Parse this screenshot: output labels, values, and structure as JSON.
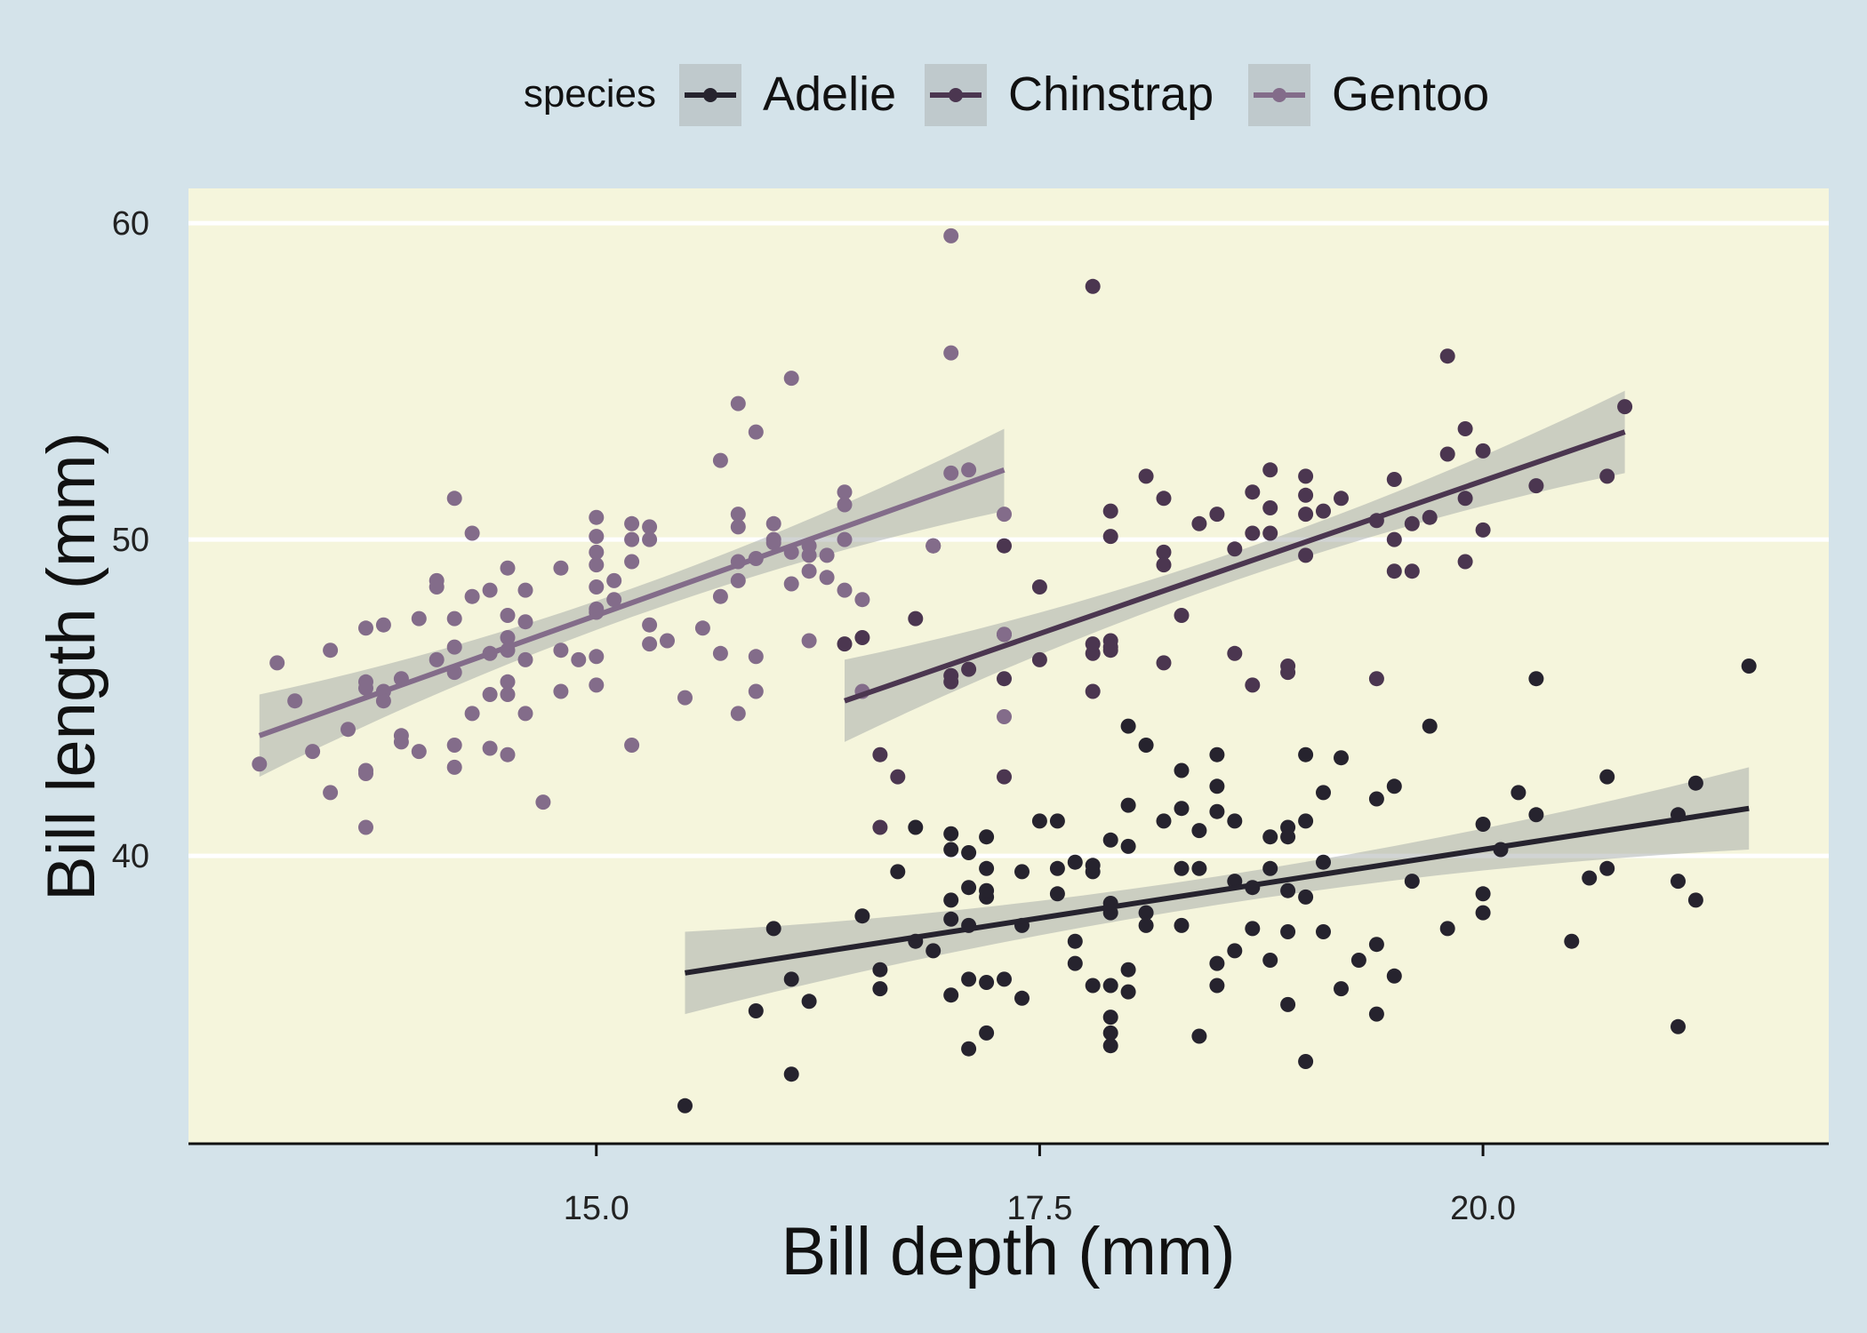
{
  "colors": {
    "page_bg": "#d4e3ea",
    "panel_bg": "#f5f5dc",
    "gridline": "#ffffff",
    "ribbon": "#c6cbc6",
    "legend_key_bg": "#bfc9cc",
    "Adelie": "#26232e",
    "Chinstrap": "#4b3650",
    "Gentoo": "#836c8a"
  },
  "legend": {
    "title": "species",
    "position": "top"
  },
  "chart_data": {
    "type": "scatter",
    "xlabel": "Bill depth (mm)",
    "ylabel": "Bill length (mm)",
    "xlim": [
      12.7,
      21.95
    ],
    "ylim": [
      30.9,
      61.1
    ],
    "xticks": [
      15.0,
      17.5,
      20.0
    ],
    "xtick_labels": [
      "15.0",
      "17.5",
      "20.0"
    ],
    "yticks": [
      40,
      50,
      60
    ],
    "ytick_labels": [
      "40",
      "50",
      "60"
    ],
    "grid": "horizontal major lines only",
    "series": [
      {
        "name": "Adelie",
        "points": [
          [
            15.5,
            32.1
          ],
          [
            16.1,
            33.1
          ],
          [
            17.1,
            33.9
          ],
          [
            17.2,
            34.4
          ],
          [
            17.9,
            34.4
          ],
          [
            18.4,
            34.3
          ],
          [
            21.1,
            34.6
          ],
          [
            17.9,
            34.0
          ],
          [
            19.0,
            33.5
          ],
          [
            15.9,
            35.1
          ],
          [
            16.2,
            35.4
          ],
          [
            17.4,
            35.5
          ],
          [
            17.9,
            34.9
          ],
          [
            18.5,
            35.9
          ],
          [
            19.4,
            35.0
          ],
          [
            16.1,
            36.1
          ],
          [
            18.9,
            35.3
          ],
          [
            19.2,
            35.8
          ],
          [
            16.6,
            35.8
          ],
          [
            17.0,
            35.6
          ],
          [
            17.1,
            36.1
          ],
          [
            17.2,
            36.0
          ],
          [
            17.3,
            36.1
          ],
          [
            17.7,
            36.6
          ],
          [
            17.8,
            35.9
          ],
          [
            17.9,
            35.9
          ],
          [
            18.0,
            35.7
          ],
          [
            18.0,
            36.4
          ],
          [
            16.0,
            37.7
          ],
          [
            16.5,
            38.1
          ],
          [
            16.6,
            36.4
          ],
          [
            16.8,
            37.3
          ],
          [
            16.9,
            37.0
          ],
          [
            17.0,
            38.0
          ],
          [
            17.1,
            37.8
          ],
          [
            17.4,
            37.8
          ],
          [
            17.7,
            37.3
          ],
          [
            18.1,
            37.8
          ],
          [
            18.1,
            38.2
          ],
          [
            18.3,
            37.8
          ],
          [
            18.5,
            36.6
          ],
          [
            18.6,
            37.0
          ],
          [
            18.7,
            37.7
          ],
          [
            18.8,
            36.7
          ],
          [
            18.9,
            37.6
          ],
          [
            19.1,
            37.6
          ],
          [
            19.3,
            36.7
          ],
          [
            19.4,
            37.2
          ],
          [
            19.5,
            36.2
          ],
          [
            16.7,
            39.5
          ],
          [
            16.8,
            40.9
          ],
          [
            17.0,
            40.7
          ],
          [
            17.0,
            40.2
          ],
          [
            17.0,
            38.6
          ],
          [
            17.1,
            39.0
          ],
          [
            17.1,
            40.1
          ],
          [
            17.2,
            40.6
          ],
          [
            17.2,
            39.6
          ],
          [
            17.2,
            38.7
          ],
          [
            17.2,
            38.9
          ],
          [
            17.4,
            39.5
          ],
          [
            17.5,
            41.1
          ],
          [
            17.6,
            39.6
          ],
          [
            17.6,
            38.8
          ],
          [
            17.6,
            41.1
          ],
          [
            17.7,
            39.8
          ],
          [
            17.8,
            39.5
          ],
          [
            17.8,
            39.7
          ],
          [
            17.9,
            40.5
          ],
          [
            17.9,
            38.5
          ],
          [
            18.0,
            41.6
          ],
          [
            18.0,
            40.3
          ],
          [
            18.0,
            44.1
          ],
          [
            18.1,
            43.5
          ],
          [
            18.2,
            41.1
          ],
          [
            18.3,
            41.5
          ],
          [
            18.3,
            42.7
          ],
          [
            18.4,
            40.8
          ],
          [
            18.4,
            39.6
          ],
          [
            18.5,
            41.4
          ],
          [
            18.5,
            43.2
          ],
          [
            18.5,
            42.2
          ],
          [
            18.6,
            41.1
          ],
          [
            18.6,
            39.2
          ],
          [
            18.7,
            39.0
          ],
          [
            18.8,
            40.6
          ],
          [
            18.8,
            39.6
          ],
          [
            18.9,
            40.9
          ],
          [
            18.9,
            40.6
          ],
          [
            19.0,
            41.1
          ],
          [
            19.0,
            43.2
          ],
          [
            19.1,
            39.8
          ],
          [
            19.1,
            42.0
          ],
          [
            19.2,
            43.1
          ],
          [
            19.4,
            41.8
          ],
          [
            19.5,
            42.2
          ],
          [
            19.6,
            39.2
          ],
          [
            19.7,
            44.1
          ],
          [
            19.8,
            37.7
          ],
          [
            20.0,
            38.8
          ],
          [
            20.0,
            38.2
          ],
          [
            20.0,
            41.0
          ],
          [
            20.1,
            40.2
          ],
          [
            20.2,
            42.0
          ],
          [
            20.3,
            41.3
          ],
          [
            20.3,
            45.6
          ],
          [
            20.5,
            37.3
          ],
          [
            20.6,
            39.3
          ],
          [
            20.7,
            39.6
          ],
          [
            20.7,
            42.5
          ],
          [
            21.1,
            39.2
          ],
          [
            21.1,
            41.3
          ],
          [
            21.2,
            42.3
          ],
          [
            21.2,
            38.6
          ],
          [
            21.5,
            46.0
          ],
          [
            17.9,
            38.2
          ],
          [
            18.9,
            38.9
          ],
          [
            19.0,
            38.7
          ],
          [
            18.3,
            39.6
          ]
        ],
        "fit": {
          "x": [
            15.5,
            21.5
          ],
          "y": [
            36.3,
            41.5
          ]
        }
      },
      {
        "name": "Chinstrap",
        "points": [
          [
            16.4,
            46.7
          ],
          [
            16.5,
            46.9
          ],
          [
            16.6,
            43.2
          ],
          [
            16.6,
            40.9
          ],
          [
            16.7,
            42.5
          ],
          [
            16.8,
            47.5
          ],
          [
            16.9,
            49.8
          ],
          [
            17.0,
            45.5
          ],
          [
            17.0,
            45.7
          ],
          [
            17.1,
            45.9
          ],
          [
            17.3,
            45.6
          ],
          [
            17.3,
            42.5
          ],
          [
            17.3,
            47.0
          ],
          [
            17.3,
            49.8
          ],
          [
            17.5,
            46.2
          ],
          [
            17.5,
            48.5
          ],
          [
            17.8,
            46.4
          ],
          [
            17.8,
            46.7
          ],
          [
            17.8,
            45.2
          ],
          [
            17.8,
            58.0
          ],
          [
            17.9,
            46.8
          ],
          [
            17.9,
            46.5
          ],
          [
            17.9,
            50.9
          ],
          [
            17.9,
            50.1
          ],
          [
            18.1,
            52.0
          ],
          [
            18.2,
            51.3
          ],
          [
            18.2,
            49.6
          ],
          [
            18.2,
            49.2
          ],
          [
            18.2,
            46.1
          ],
          [
            18.3,
            47.6
          ],
          [
            18.4,
            50.5
          ],
          [
            18.5,
            50.8
          ],
          [
            18.6,
            49.7
          ],
          [
            18.6,
            46.4
          ],
          [
            18.7,
            45.4
          ],
          [
            18.7,
            50.2
          ],
          [
            18.7,
            51.5
          ],
          [
            18.8,
            52.2
          ],
          [
            18.8,
            50.2
          ],
          [
            18.8,
            51.0
          ],
          [
            18.9,
            45.8
          ],
          [
            18.9,
            46.0
          ],
          [
            19.0,
            49.5
          ],
          [
            19.0,
            52.0
          ],
          [
            19.0,
            50.8
          ],
          [
            19.0,
            51.4
          ],
          [
            19.1,
            50.9
          ],
          [
            19.2,
            51.3
          ],
          [
            19.4,
            45.6
          ],
          [
            19.4,
            50.6
          ],
          [
            19.5,
            51.9
          ],
          [
            19.5,
            49.0
          ],
          [
            19.5,
            50.0
          ],
          [
            19.6,
            50.5
          ],
          [
            19.6,
            49.0
          ],
          [
            19.7,
            50.7
          ],
          [
            19.8,
            52.7
          ],
          [
            19.8,
            55.8
          ],
          [
            19.9,
            53.5
          ],
          [
            19.9,
            49.3
          ],
          [
            19.9,
            51.3
          ],
          [
            20.0,
            50.3
          ],
          [
            20.0,
            52.8
          ],
          [
            20.3,
            51.7
          ],
          [
            20.7,
            52.0
          ],
          [
            20.8,
            54.2
          ],
          [
            17.9,
            46.6
          ]
        ],
        "fit": {
          "x": [
            16.4,
            20.8
          ],
          "y": [
            44.9,
            53.4
          ]
        }
      },
      {
        "name": "Gentoo",
        "points": [
          [
            13.1,
            42.9
          ],
          [
            13.2,
            46.1
          ],
          [
            13.3,
            44.9
          ],
          [
            13.4,
            43.3
          ],
          [
            13.5,
            46.5
          ],
          [
            13.5,
            42.0
          ],
          [
            13.6,
            44.0
          ],
          [
            13.7,
            40.9
          ],
          [
            13.7,
            42.6
          ],
          [
            13.7,
            42.7
          ],
          [
            13.7,
            45.3
          ],
          [
            13.7,
            45.5
          ],
          [
            13.7,
            47.2
          ],
          [
            13.8,
            45.2
          ],
          [
            13.8,
            44.9
          ],
          [
            13.8,
            47.3
          ],
          [
            13.9,
            45.6
          ],
          [
            13.9,
            43.8
          ],
          [
            13.9,
            43.6
          ],
          [
            14.0,
            43.3
          ],
          [
            14.0,
            47.5
          ],
          [
            14.1,
            46.2
          ],
          [
            14.1,
            48.5
          ],
          [
            14.1,
            48.7
          ],
          [
            14.2,
            45.8
          ],
          [
            14.2,
            46.6
          ],
          [
            14.2,
            47.5
          ],
          [
            14.2,
            51.3
          ],
          [
            14.2,
            43.5
          ],
          [
            14.2,
            42.8
          ],
          [
            14.3,
            50.2
          ],
          [
            14.3,
            48.2
          ],
          [
            14.3,
            44.5
          ],
          [
            14.4,
            46.4
          ],
          [
            14.4,
            45.1
          ],
          [
            14.4,
            43.4
          ],
          [
            14.4,
            48.4
          ],
          [
            14.5,
            46.5
          ],
          [
            14.5,
            46.9
          ],
          [
            14.5,
            45.5
          ],
          [
            14.5,
            49.1
          ],
          [
            14.5,
            45.1
          ],
          [
            14.5,
            43.2
          ],
          [
            14.5,
            47.6
          ],
          [
            14.6,
            46.2
          ],
          [
            14.6,
            44.5
          ],
          [
            14.6,
            48.4
          ],
          [
            14.6,
            47.4
          ],
          [
            14.7,
            41.7
          ],
          [
            14.8,
            45.2
          ],
          [
            14.8,
            46.5
          ],
          [
            14.8,
            49.1
          ],
          [
            14.9,
            46.2
          ],
          [
            15.0,
            45.4
          ],
          [
            15.0,
            46.3
          ],
          [
            15.0,
            47.7
          ],
          [
            15.0,
            48.5
          ],
          [
            15.0,
            49.2
          ],
          [
            15.0,
            50.1
          ],
          [
            15.0,
            50.7
          ],
          [
            15.0,
            49.6
          ],
          [
            15.0,
            47.8
          ],
          [
            15.1,
            48.7
          ],
          [
            15.1,
            48.1
          ],
          [
            15.2,
            49.3
          ],
          [
            15.2,
            50.0
          ],
          [
            15.2,
            50.5
          ],
          [
            15.2,
            43.5
          ],
          [
            15.3,
            50.4
          ],
          [
            15.3,
            50.0
          ],
          [
            15.3,
            46.7
          ],
          [
            15.3,
            47.3
          ],
          [
            15.4,
            46.8
          ],
          [
            15.5,
            45.0
          ],
          [
            15.6,
            47.2
          ],
          [
            15.7,
            48.2
          ],
          [
            15.7,
            46.4
          ],
          [
            15.7,
            52.5
          ],
          [
            15.8,
            49.3
          ],
          [
            15.8,
            48.7
          ],
          [
            15.8,
            50.4
          ],
          [
            15.8,
            50.8
          ],
          [
            15.8,
            54.3
          ],
          [
            15.8,
            44.5
          ],
          [
            15.9,
            49.4
          ],
          [
            15.9,
            46.3
          ],
          [
            15.9,
            45.2
          ],
          [
            15.9,
            53.4
          ],
          [
            16.0,
            50.5
          ],
          [
            16.0,
            49.9
          ],
          [
            16.0,
            50.0
          ],
          [
            16.1,
            49.6
          ],
          [
            16.1,
            48.6
          ],
          [
            16.1,
            55.1
          ],
          [
            16.2,
            49.5
          ],
          [
            16.2,
            49.8
          ],
          [
            16.2,
            49.0
          ],
          [
            16.2,
            46.8
          ],
          [
            16.3,
            49.5
          ],
          [
            16.3,
            48.8
          ],
          [
            16.4,
            50.0
          ],
          [
            16.4,
            51.1
          ],
          [
            16.4,
            51.5
          ],
          [
            16.4,
            48.4
          ],
          [
            16.5,
            48.1
          ],
          [
            16.5,
            45.2
          ],
          [
            16.9,
            49.8
          ],
          [
            17.0,
            52.1
          ],
          [
            17.0,
            55.9
          ],
          [
            17.0,
            59.6
          ],
          [
            17.1,
            52.2
          ],
          [
            17.3,
            50.8
          ],
          [
            17.3,
            44.4
          ],
          [
            17.3,
            47.0
          ]
        ],
        "fit": {
          "x": [
            13.1,
            17.3
          ],
          "y": [
            43.8,
            52.2
          ]
        }
      }
    ]
  }
}
